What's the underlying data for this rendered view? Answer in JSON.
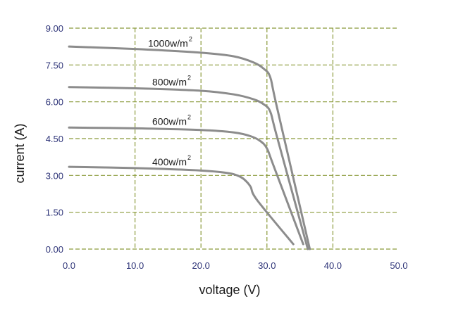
{
  "chart_data": {
    "type": "line",
    "xlabel": "voltage (V)",
    "ylabel": "current (A)",
    "xlim": [
      0,
      50
    ],
    "ylim": [
      0,
      9
    ],
    "x_ticks": [
      "0.0",
      "10.0",
      "20.0",
      "30.0",
      "40.0",
      "50.0"
    ],
    "y_ticks": [
      "0.00",
      "1.50",
      "3.00",
      "4.50",
      "6.00",
      "7.50",
      "9.00"
    ],
    "grid": {
      "x": true,
      "y": true,
      "style": "dashed",
      "color": "#8a9a3a"
    },
    "series": [
      {
        "name": "1000w/m",
        "name_superscript": "2",
        "x": [
          0,
          10,
          20,
          25,
          28,
          29.5,
          30.5,
          31.5,
          36.5
        ],
        "y": [
          8.25,
          8.15,
          8.0,
          7.85,
          7.6,
          7.35,
          7.0,
          5.8,
          0
        ]
      },
      {
        "name": "800w/m",
        "name_superscript": "2",
        "x": [
          0,
          10,
          20,
          25,
          28,
          29.5,
          30.5,
          31.5,
          36.2
        ],
        "y": [
          6.6,
          6.55,
          6.45,
          6.3,
          6.1,
          5.9,
          5.6,
          4.6,
          0
        ]
      },
      {
        "name": "600w/m",
        "name_superscript": "2",
        "x": [
          0,
          10,
          20,
          25,
          27.5,
          29,
          30,
          31,
          35.5
        ],
        "y": [
          4.95,
          4.92,
          4.85,
          4.75,
          4.6,
          4.4,
          4.1,
          3.4,
          0.2
        ]
      },
      {
        "name": "400w/m",
        "name_superscript": "2",
        "x": [
          0,
          10,
          20,
          24,
          25.5,
          26.5,
          27.5,
          28.5,
          34
        ],
        "y": [
          3.35,
          3.3,
          3.2,
          3.1,
          3.0,
          2.85,
          2.55,
          2.0,
          0.2
        ]
      }
    ],
    "line_color": "#8c8c8c"
  }
}
